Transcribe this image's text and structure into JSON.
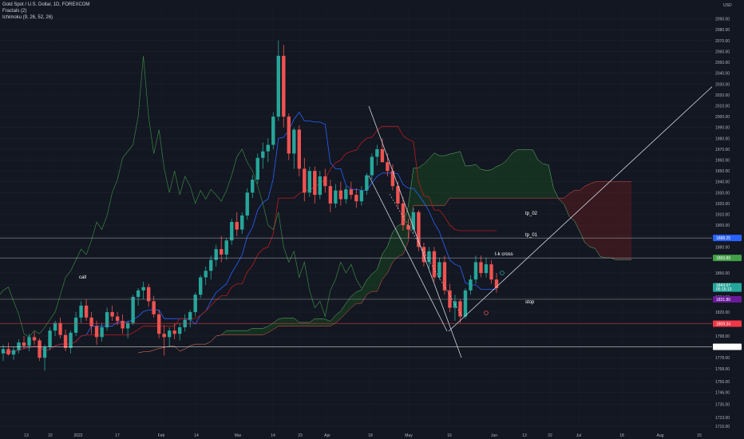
{
  "legend": {
    "title": "Gold Spot / U.S. Dollar, 1D, FOREXCOM",
    "indicator1": "Fractals (2)",
    "indicator2": "Ichimoku (9, 26, 52, 26)"
  },
  "currency": "USD",
  "colors": {
    "bg": "#131722",
    "up": "#26a69a",
    "down": "#ef5350",
    "tenkan": "#2962ff",
    "kijun": "#b71c1c",
    "chikou": "#43a047",
    "cloud_bull": "#1b5e20",
    "cloud_bear": "#7f1d1d",
    "line": "#d1d4dc"
  },
  "chart_data": {
    "type": "candlestick",
    "ylim": [
      1712,
      2100
    ],
    "y_ticks": [
      "2090.00",
      "2080.00",
      "2070.00",
      "2060.00",
      "2050.00",
      "2040.00",
      "2030.00",
      "2020.00",
      "2010.00",
      "2000.00",
      "1990.00",
      "1980.00",
      "1970.00",
      "1960.00",
      "1950.00",
      "1940.00",
      "1930.00",
      "1920.00",
      "1910.00",
      "1900.00",
      "1890.00",
      "1880.00",
      "1870.00",
      "1856.00",
      "1845.00",
      "1834.00",
      "1820.00",
      "1810.00",
      "1798.00",
      "1788.00",
      "1778.00",
      "1768.00",
      "1756.00",
      "1746.00",
      "1735.00",
      "1723.00",
      "1715.00"
    ],
    "x_ticks": [
      "13",
      "22",
      "2022",
      "17",
      "Feb",
      "14",
      "Mar",
      "14",
      "23",
      "Apr",
      "18",
      "May",
      "16",
      "Jun",
      "13",
      "22",
      "Jul",
      "18",
      "Aug",
      "15"
    ],
    "candles": [
      [
        1782,
        1790,
        1775,
        1786
      ],
      [
        1786,
        1792,
        1780,
        1781
      ],
      [
        1781,
        1788,
        1776,
        1785
      ],
      [
        1785,
        1795,
        1782,
        1792
      ],
      [
        1792,
        1798,
        1786,
        1789
      ],
      [
        1789,
        1800,
        1784,
        1797
      ],
      [
        1797,
        1802,
        1790,
        1794
      ],
      [
        1794,
        1796,
        1775,
        1778
      ],
      [
        1778,
        1790,
        1766,
        1788
      ],
      [
        1788,
        1806,
        1785,
        1803
      ],
      [
        1803,
        1812,
        1798,
        1810
      ],
      [
        1810,
        1815,
        1796,
        1799
      ],
      [
        1799,
        1804,
        1784,
        1787
      ],
      [
        1787,
        1803,
        1782,
        1801
      ],
      [
        1801,
        1820,
        1798,
        1815
      ],
      [
        1815,
        1830,
        1810,
        1826
      ],
      [
        1826,
        1832,
        1812,
        1815
      ],
      [
        1815,
        1820,
        1800,
        1807
      ],
      [
        1807,
        1812,
        1790,
        1797
      ],
      [
        1797,
        1810,
        1793,
        1806
      ],
      [
        1806,
        1824,
        1803,
        1820
      ],
      [
        1820,
        1826,
        1812,
        1816
      ],
      [
        1816,
        1820,
        1808,
        1812
      ],
      [
        1812,
        1818,
        1800,
        1805
      ],
      [
        1805,
        1812,
        1796,
        1810
      ],
      [
        1810,
        1836,
        1808,
        1834
      ],
      [
        1834,
        1842,
        1826,
        1840
      ],
      [
        1840,
        1848,
        1832,
        1843
      ],
      [
        1843,
        1846,
        1825,
        1830
      ],
      [
        1830,
        1835,
        1815,
        1818
      ],
      [
        1818,
        1822,
        1796,
        1800
      ],
      [
        1800,
        1808,
        1780,
        1797
      ],
      [
        1797,
        1806,
        1788,
        1803
      ],
      [
        1803,
        1810,
        1795,
        1800
      ],
      [
        1800,
        1810,
        1794,
        1806
      ],
      [
        1806,
        1818,
        1802,
        1813
      ],
      [
        1813,
        1822,
        1806,
        1820
      ],
      [
        1820,
        1838,
        1816,
        1836
      ],
      [
        1836,
        1854,
        1833,
        1852
      ],
      [
        1852,
        1862,
        1845,
        1858
      ],
      [
        1858,
        1872,
        1850,
        1868
      ],
      [
        1868,
        1882,
        1862,
        1878
      ],
      [
        1878,
        1890,
        1866,
        1873
      ],
      [
        1873,
        1888,
        1868,
        1886
      ],
      [
        1886,
        1906,
        1882,
        1903
      ],
      [
        1903,
        1912,
        1890,
        1896
      ],
      [
        1896,
        1912,
        1892,
        1909
      ],
      [
        1909,
        1934,
        1905,
        1930
      ],
      [
        1930,
        1946,
        1925,
        1942
      ],
      [
        1942,
        1966,
        1938,
        1962
      ],
      [
        1962,
        1976,
        1952,
        1968
      ],
      [
        1968,
        1980,
        1958,
        1974
      ],
      [
        1974,
        2004,
        1970,
        2000
      ],
      [
        2000,
        2070,
        1996,
        2056
      ],
      [
        2056,
        2066,
        1990,
        2000
      ],
      [
        2000,
        2003,
        1960,
        1966
      ],
      [
        1966,
        1990,
        1952,
        1988
      ],
      [
        1988,
        1992,
        1945,
        1952
      ],
      [
        1952,
        1962,
        1922,
        1930
      ],
      [
        1930,
        1954,
        1926,
        1950
      ],
      [
        1950,
        1954,
        1920,
        1928
      ],
      [
        1928,
        1950,
        1924,
        1945
      ],
      [
        1945,
        1952,
        1930,
        1936
      ],
      [
        1936,
        1942,
        1912,
        1920
      ],
      [
        1920,
        1938,
        1916,
        1932
      ],
      [
        1932,
        1940,
        1918,
        1924
      ],
      [
        1924,
        1936,
        1920,
        1933
      ],
      [
        1933,
        1940,
        1924,
        1928
      ],
      [
        1928,
        1934,
        1916,
        1922
      ],
      [
        1922,
        1936,
        1918,
        1932
      ],
      [
        1932,
        1948,
        1928,
        1946
      ],
      [
        1946,
        1966,
        1942,
        1963
      ],
      [
        1963,
        1974,
        1955,
        1970
      ],
      [
        1970,
        1980,
        1960,
        1958
      ],
      [
        1958,
        1966,
        1945,
        1950
      ],
      [
        1950,
        1956,
        1932,
        1936
      ],
      [
        1936,
        1940,
        1915,
        1920
      ],
      [
        1920,
        1926,
        1895,
        1900
      ],
      [
        1900,
        1906,
        1888,
        1896
      ],
      [
        1896,
        1916,
        1892,
        1912
      ],
      [
        1912,
        1914,
        1876,
        1880
      ],
      [
        1880,
        1884,
        1862,
        1866
      ],
      [
        1866,
        1880,
        1860,
        1876
      ],
      [
        1876,
        1880,
        1848,
        1852
      ],
      [
        1852,
        1870,
        1850,
        1866
      ],
      [
        1866,
        1872,
        1836,
        1840
      ],
      [
        1840,
        1846,
        1820,
        1824
      ],
      [
        1824,
        1836,
        1812,
        1830
      ],
      [
        1830,
        1832,
        1810,
        1816
      ],
      [
        1816,
        1842,
        1814,
        1840
      ],
      [
        1840,
        1854,
        1836,
        1850
      ],
      [
        1850,
        1872,
        1846,
        1866
      ],
      [
        1866,
        1872,
        1852,
        1856
      ],
      [
        1856,
        1870,
        1852,
        1864
      ],
      [
        1864,
        1868,
        1846,
        1850
      ],
      [
        1850,
        1856,
        1838,
        1842
      ]
    ],
    "last_price": "1843.07",
    "countdown": "05:16:13"
  },
  "price_tags": [
    {
      "label": "1888.25",
      "price": 1888.25,
      "color": "#2962ff",
      "line": "#b2b5be"
    },
    {
      "label": "1869.89",
      "price": 1869.89,
      "color": "#43a047",
      "line": "#b2b5be"
    },
    {
      "label": "1831.80",
      "price": 1831.8,
      "color": "#6a1b9a",
      "line": "#9e9e9e"
    },
    {
      "label": "1809.34",
      "price": 1809.34,
      "color": "#f23645",
      "line": "#f23645"
    },
    {
      "label": "1788.03",
      "price": 1788.03,
      "color": "#ffffff",
      "line": "#ffffff"
    }
  ],
  "annotations": {
    "call": "call",
    "tp2": "tp_02",
    "tp1": "tp_01",
    "tk_cross": "t-k cross",
    "stop": "stop"
  }
}
